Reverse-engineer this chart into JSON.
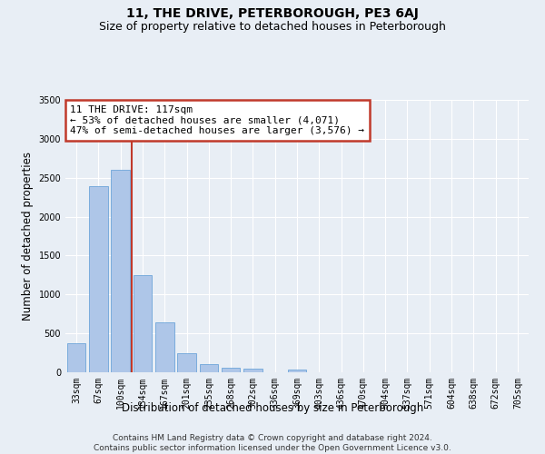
{
  "title": "11, THE DRIVE, PETERBOROUGH, PE3 6AJ",
  "subtitle": "Size of property relative to detached houses in Peterborough",
  "xlabel": "Distribution of detached houses by size in Peterborough",
  "ylabel": "Number of detached properties",
  "footer_line1": "Contains HM Land Registry data © Crown copyright and database right 2024.",
  "footer_line2": "Contains public sector information licensed under the Open Government Licence v3.0.",
  "categories": [
    "33sqm",
    "67sqm",
    "100sqm",
    "134sqm",
    "167sqm",
    "201sqm",
    "235sqm",
    "268sqm",
    "302sqm",
    "336sqm",
    "369sqm",
    "403sqm",
    "436sqm",
    "470sqm",
    "504sqm",
    "537sqm",
    "571sqm",
    "604sqm",
    "638sqm",
    "672sqm",
    "705sqm"
  ],
  "bar_values": [
    370,
    2390,
    2600,
    1250,
    640,
    250,
    110,
    60,
    50,
    0,
    35,
    0,
    0,
    0,
    0,
    0,
    0,
    0,
    0,
    0,
    0
  ],
  "bar_color": "#aec6e8",
  "bar_edge_color": "#5b9bd5",
  "vline_color": "#c0392b",
  "annotation_text": "11 THE DRIVE: 117sqm\n← 53% of detached houses are smaller (4,071)\n47% of semi-detached houses are larger (3,576) →",
  "annotation_box_color": "#c0392b",
  "ylim": [
    0,
    3500
  ],
  "background_color": "#e8eef5",
  "axes_background": "#e8eef5",
  "grid_color": "#ffffff",
  "title_fontsize": 10,
  "subtitle_fontsize": 9,
  "label_fontsize": 8.5,
  "tick_fontsize": 7,
  "footer_fontsize": 6.5,
  "annotation_fontsize": 8
}
